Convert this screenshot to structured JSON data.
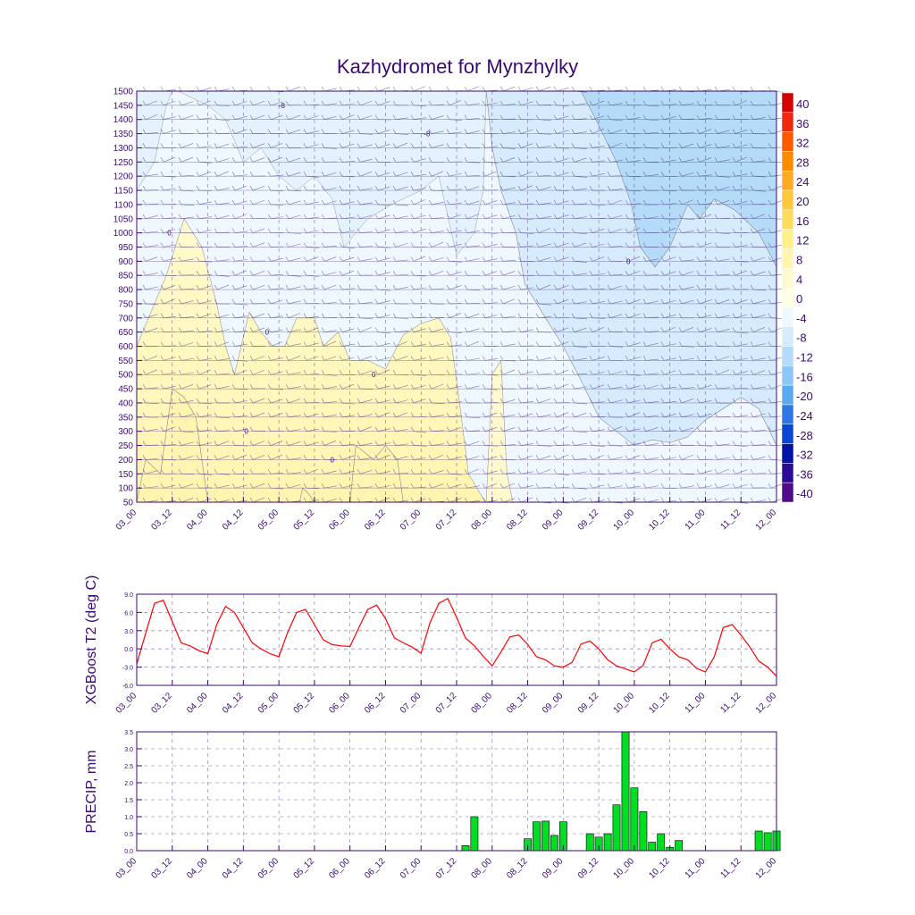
{
  "title": "Kazhydromet for Mynzhylky",
  "x_ticks": [
    "03_00",
    "03_12",
    "04_00",
    "04_12",
    "05_00",
    "05_12",
    "06_00",
    "06_12",
    "07_00",
    "07_12",
    "08_00",
    "08_12",
    "09_00",
    "09_12",
    "10_00",
    "10_12",
    "11_00",
    "11_12",
    "12_00"
  ],
  "chart_data": [
    {
      "type": "heatmap",
      "title": "Kazhydromet for Mynzhylky",
      "x": [
        "03_00",
        "03_12",
        "04_00",
        "04_12",
        "05_00",
        "05_12",
        "06_00",
        "06_12",
        "07_00",
        "07_12",
        "08_00",
        "08_12",
        "09_00",
        "09_12",
        "10_00",
        "10_12",
        "11_00",
        "11_12",
        "12_00"
      ],
      "y_levels": [
        50,
        100,
        150,
        200,
        250,
        300,
        350,
        400,
        450,
        500,
        550,
        600,
        650,
        700,
        750,
        800,
        850,
        900,
        950,
        1000,
        1050,
        1100,
        1150,
        1200,
        1250,
        1300,
        1350,
        1400,
        1450,
        1500
      ],
      "ylim": [
        50,
        1500
      ],
      "colorbar_levels": [
        40,
        36,
        32,
        28,
        24,
        20,
        16,
        12,
        8,
        4,
        0,
        -4,
        -8,
        -12,
        -16,
        -20,
        -24,
        -28,
        -32,
        -36,
        -40
      ],
      "colorbar_colors": [
        "#d40000",
        "#ef2810",
        "#ff5a00",
        "#ff8c00",
        "#ffaa22",
        "#ffc83c",
        "#ffdc5a",
        "#fff08c",
        "#fff5b0",
        "#fffacd",
        "#ffffe6",
        "#f0f8ff",
        "#d6ecfc",
        "#b4dcf8",
        "#8cc8f6",
        "#5aaaf0",
        "#2d78e6",
        "#0a46d2",
        "#0014aa",
        "#2a0a96",
        "#500a8c"
      ],
      "contour_labels": [
        "-8",
        "-8",
        "0",
        "0",
        "0",
        "0",
        "0",
        "0"
      ],
      "grid": true
    },
    {
      "type": "line",
      "ylabel": "XGBoost T2 (deg C)",
      "ylim": [
        -6,
        9
      ],
      "y_ticks": [
        "9.0",
        "6.0",
        "3.0",
        "0.0",
        "-3.0",
        "-6.0"
      ],
      "x_ticks": [
        "03_00",
        "03_12",
        "04_00",
        "04_12",
        "05_00",
        "05_12",
        "06_00",
        "06_12",
        "07_00",
        "07_12",
        "08_00",
        "08_12",
        "09_00",
        "09_12",
        "10_00",
        "10_12",
        "11_00",
        "11_12",
        "12_00"
      ],
      "x_hours": [
        0,
        3,
        6,
        9,
        12,
        15,
        18,
        21,
        24,
        27,
        30,
        33,
        36,
        39,
        42,
        45,
        48,
        51,
        54,
        57,
        60,
        63,
        66,
        69,
        72,
        75,
        78,
        81,
        84,
        87,
        90,
        93,
        96,
        99,
        102,
        105,
        108,
        111,
        114,
        117,
        120,
        123,
        126,
        129,
        132,
        135,
        138,
        141,
        144,
        147,
        150,
        153,
        156,
        159,
        162,
        165,
        168,
        171,
        174,
        177,
        180,
        183,
        186,
        189,
        192,
        195,
        198,
        201,
        204,
        207,
        210,
        213,
        216
      ],
      "series": [
        {
          "color": "#ff0000",
          "values": [
            -2.5,
            2.5,
            7.5,
            8.0,
            4.5,
            1.0,
            0.5,
            -0.3,
            -0.8,
            4.0,
            7.0,
            6.0,
            3.5,
            1.0,
            0.0,
            -0.8,
            -1.3,
            2.8,
            6.0,
            6.5,
            4.0,
            1.5,
            0.7,
            0.5,
            0.4,
            3.5,
            6.5,
            7.2,
            5.0,
            1.8,
            1.0,
            0.3,
            -0.7,
            4.3,
            7.5,
            8.3,
            5.2,
            1.8,
            0.5,
            -1.2,
            -2.8,
            -0.5,
            2.0,
            2.3,
            0.7,
            -1.3,
            -1.8,
            -2.8,
            -3.0,
            -2.2,
            0.8,
            1.3,
            0.0,
            -1.8,
            -2.8,
            -3.3,
            -3.8,
            -2.7,
            1.0,
            1.6,
            0.0,
            -1.3,
            -1.8,
            -3.2,
            -3.8,
            -1.3,
            3.5,
            4.0,
            2.3,
            0.3,
            -2.0,
            -3.0,
            -4.5
          ]
        }
      ]
    },
    {
      "type": "bar",
      "ylabel": "PRECIP, mm",
      "ylim": [
        0,
        3.5
      ],
      "y_ticks": [
        "3.5",
        "3.0",
        "2.5",
        "2.0",
        "1.5",
        "1.0",
        "0.5",
        "0.0"
      ],
      "x_ticks": [
        "03_00",
        "03_12",
        "04_00",
        "04_12",
        "05_00",
        "05_12",
        "06_00",
        "06_12",
        "07_00",
        "07_12",
        "08_00",
        "08_12",
        "09_00",
        "09_12",
        "10_00",
        "10_12",
        "11_00",
        "11_12",
        "12_00"
      ],
      "color": "#00dd22",
      "x_hours": [
        111,
        114,
        132,
        135,
        138,
        141,
        144,
        153,
        156,
        159,
        162,
        165,
        168,
        171,
        174,
        177,
        180,
        183,
        186,
        189,
        210,
        213,
        216
      ],
      "values": [
        0.15,
        1.0,
        0.35,
        0.85,
        0.87,
        0.45,
        0.85,
        0.5,
        0.4,
        0.5,
        1.35,
        3.5,
        1.85,
        1.15,
        0.25,
        0.5,
        0.1,
        0.3,
        0.0,
        0.0,
        0.58,
        0.53,
        0.58
      ]
    }
  ]
}
